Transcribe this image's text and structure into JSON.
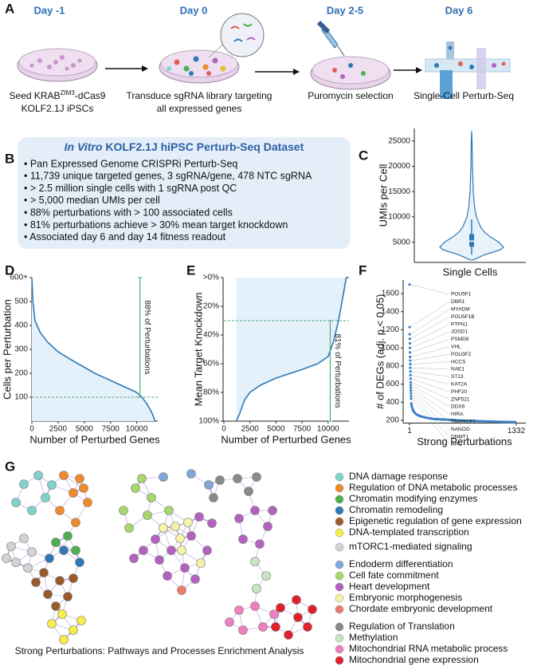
{
  "panel_labels": [
    "A",
    "B",
    "C",
    "D",
    "E",
    "F",
    "G"
  ],
  "workflow": {
    "steps": [
      {
        "day": "Day -1",
        "lines": [
          [
            "Seed KRAB",
            "ZIM3",
            "-dCas9"
          ],
          "KOLF2.1J iPSCs"
        ]
      },
      {
        "day": "Day 0",
        "lines": [
          "Transduce sgRNA library targeting",
          "all expressed genes"
        ]
      },
      {
        "day": "Day 2-5",
        "lines": [
          "Puromycin selection"
        ]
      },
      {
        "day": "Day 6",
        "lines": [
          "Single-Cell Perturb-Seq"
        ]
      }
    ]
  },
  "dataset": {
    "title_italic": "In Vitro",
    "title": "KOLF2.1J hiPSC Perturb-Seq Dataset",
    "bullets": [
      "• Pan Expressed Genome CRISPRi Perturb-Seq",
      "• 11,739 unique targeted genes, 3 sgRNA/gene, 478 NTC sgRNA",
      "• > 2.5 million single cells with 1 sgRNA post QC",
      "• > 5,000 median UMIs per cell",
      "• 88% perturbations with > 100 associated cells",
      "• 81% perturbations achieve > 30% mean target knockdown",
      "• Associated day 6 and day 14 fitness readout"
    ]
  },
  "chart_data": [
    {
      "type": "violin",
      "ylabel": "UMIs per Cell",
      "xlabel": "Single Cells",
      "color": "#2f79b5",
      "fill": "#e8f2fb",
      "ylim": [
        1000,
        27500
      ],
      "yticks": [
        5000,
        10000,
        15000,
        20000,
        25000
      ],
      "density": {
        "y": [
          1500,
          2500,
          3500,
          4000,
          5000,
          6000,
          7000,
          8000,
          10000,
          12000,
          15000,
          20000,
          25000,
          27000
        ],
        "width": [
          0.05,
          0.4,
          0.9,
          1.0,
          0.85,
          0.6,
          0.4,
          0.28,
          0.15,
          0.09,
          0.05,
          0.025,
          0.012,
          0
        ]
      },
      "q1": 4100,
      "median": 5200,
      "q3": 6600,
      "whisker_low": 2500,
      "whisker_high": 9500
    },
    {
      "type": "line",
      "xlabel": "Number of Perturbed Genes",
      "ylabel": "Cells per Perturbation",
      "color": "#2f79b5",
      "fill": true,
      "xlim": [
        0,
        12000
      ],
      "xticks": [
        0,
        2500,
        5000,
        7500,
        10000
      ],
      "ylim": [
        0,
        600
      ],
      "yticks": [
        100,
        200,
        300,
        400,
        500,
        {
          "value": 600,
          "label": "600+"
        }
      ],
      "x": [
        0,
        100,
        300,
        800,
        1500,
        2500,
        4000,
        5000,
        6000,
        7500,
        9000,
        10000,
        10500,
        11000,
        11500,
        11739
      ],
      "values": [
        600,
        500,
        420,
        370,
        330,
        290,
        250,
        225,
        200,
        170,
        140,
        120,
        100,
        70,
        30,
        0
      ],
      "reference_y": 100,
      "annotation": {
        "text": "88% of Perturbations",
        "x": 10300,
        "y": [
          100,
          600
        ],
        "color": "#4bae7b"
      }
    },
    {
      "type": "line",
      "xlabel": "Number of Perturbed Genes",
      "ylabel": "Mean Target Knockdown",
      "color": "#2f79b5",
      "fill": true,
      "xlim": [
        0,
        12000
      ],
      "xticks": [
        0,
        2500,
        5000,
        7500,
        10000
      ],
      "ylim": [
        100,
        0
      ],
      "yticks": [
        {
          "value": 0,
          "label": ">0%"
        },
        {
          "value": 20,
          "label": "20%"
        },
        {
          "value": 40,
          "label": "40%"
        },
        {
          "value": 60,
          "label": "60%"
        },
        {
          "value": 80,
          "label": "80%"
        },
        {
          "value": 100,
          "label": "100%"
        }
      ],
      "x": [
        1200,
        1500,
        2000,
        2500,
        3500,
        5000,
        7500,
        9000,
        10000,
        10500,
        11000,
        11500,
        11739,
        12000
      ],
      "values": [
        100,
        95,
        85,
        80,
        75,
        70,
        64,
        60,
        55,
        45,
        30,
        10,
        0,
        0
      ],
      "reference_y": 30,
      "annotation": {
        "text": "81% of Perturbations",
        "x": 10200,
        "y": [
          30,
          100
        ],
        "color": "#4bae7b"
      }
    },
    {
      "type": "scatter",
      "xlabel": "Strong Perturbations",
      "ylabel": "# of DEGs (adj. p < 0.05)",
      "xlim": [
        1,
        1332
      ],
      "xticks": [
        1,
        1332
      ],
      "ylim": [
        170,
        1750
      ],
      "yticks": [
        200,
        400,
        600,
        800,
        1000,
        1200,
        1400,
        1600
      ],
      "series": [
        {
          "color": "#3b7fc4",
          "x": [
            1,
            2,
            3,
            4,
            5,
            6,
            7,
            8,
            9,
            10,
            11,
            12,
            13,
            14,
            15,
            16,
            17,
            18,
            19,
            20,
            21
          ],
          "values": [
            1700,
            1230,
            1150,
            1100,
            1050,
            1000,
            950,
            900,
            860,
            820,
            780,
            740,
            700,
            660,
            620,
            590,
            560,
            530,
            500,
            470,
            440
          ]
        },
        {
          "color": "#3b7fc4",
          "x": [
            21,
            30,
            50,
            80,
            120,
            200,
            300,
            500,
            700,
            900,
            1100,
            1332
          ],
          "values": [
            400,
            350,
            300,
            270,
            250,
            230,
            215,
            205,
            195,
            190,
            185,
            180
          ]
        }
      ],
      "point_labels": [
        "POU5F1",
        "DBR1",
        "MYADM",
        "POU5F1B",
        "PTPN1",
        "JOSD1",
        "PSMD8",
        "VHL",
        "POU3F2",
        "HCCS",
        "NAE1",
        "ST13",
        "KAT2A",
        "PHF20",
        "ZNF521",
        "DDX6",
        "HIRA",
        "SMARCE1",
        "NANOG",
        "DNMT1",
        "HRC"
      ]
    }
  ],
  "network": {
    "caption": "Strong Perturbations: Pathways and Processes Enrichment Analysis",
    "legend": [
      {
        "label": "DNA damage response",
        "color": "#7fd3cf"
      },
      {
        "label": "Regulation of DNA metabolic processes",
        "color": "#f08a2a"
      },
      {
        "label": "Chromatin modifying enzymes",
        "color": "#4caf50"
      },
      {
        "label": "Chromatin remodeling",
        "color": "#2f79b5"
      },
      {
        "label": "Epigenetic regulation of gene expression",
        "color": "#9b5a2a"
      },
      {
        "label": "DNA-templated transcription",
        "color": "#f5ee4a"
      },
      {
        "label": "mTORC1-mediated signaling",
        "color": "#d3d3d3"
      },
      {
        "label": "Endoderm differentiation",
        "color": "#7fa8d8"
      },
      {
        "label": "Cell fate commitment",
        "color": "#a6d86a"
      },
      {
        "label": "Heart development",
        "color": "#b462c0"
      },
      {
        "label": "Embryonic morphogenesis",
        "color": "#f6f3a8"
      },
      {
        "label": "Chordate embryonic development",
        "color": "#ee7b6e"
      },
      {
        "label": "Regulation of Translation",
        "color": "#8a8a8a"
      },
      {
        "label": "Methylation",
        "color": "#c5e6c0"
      },
      {
        "label": "Mitochondrial RNA metabolic process",
        "color": "#ef7fbf"
      },
      {
        "label": "Mitochondrial gene expression",
        "color": "#e0202a"
      }
    ]
  }
}
